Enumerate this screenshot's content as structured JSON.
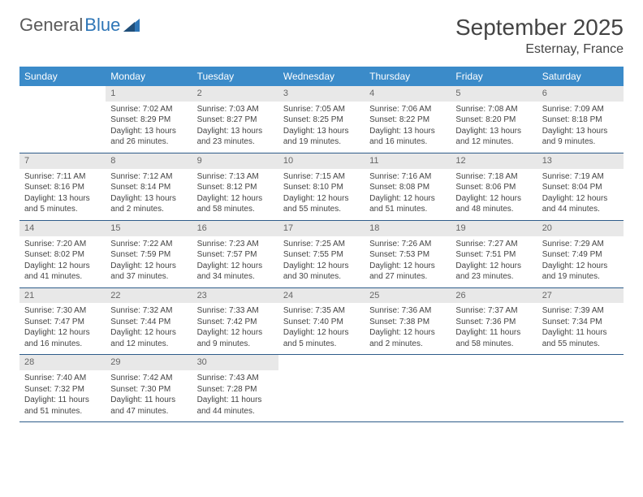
{
  "logo": {
    "text1": "General",
    "text2": "Blue"
  },
  "title": "September 2025",
  "location": "Esternay, France",
  "colors": {
    "header_bg": "#3b8bc9",
    "header_fg": "#ffffff",
    "daynum_bg": "#e8e8e8",
    "cell_border": "#2e5c8a",
    "text": "#444444"
  },
  "weekdays": [
    "Sunday",
    "Monday",
    "Tuesday",
    "Wednesday",
    "Thursday",
    "Friday",
    "Saturday"
  ],
  "weeks": [
    [
      {
        "n": "",
        "sr": "",
        "ss": "",
        "dl": ""
      },
      {
        "n": "1",
        "sr": "Sunrise: 7:02 AM",
        "ss": "Sunset: 8:29 PM",
        "dl": "Daylight: 13 hours and 26 minutes."
      },
      {
        "n": "2",
        "sr": "Sunrise: 7:03 AM",
        "ss": "Sunset: 8:27 PM",
        "dl": "Daylight: 13 hours and 23 minutes."
      },
      {
        "n": "3",
        "sr": "Sunrise: 7:05 AM",
        "ss": "Sunset: 8:25 PM",
        "dl": "Daylight: 13 hours and 19 minutes."
      },
      {
        "n": "4",
        "sr": "Sunrise: 7:06 AM",
        "ss": "Sunset: 8:22 PM",
        "dl": "Daylight: 13 hours and 16 minutes."
      },
      {
        "n": "5",
        "sr": "Sunrise: 7:08 AM",
        "ss": "Sunset: 8:20 PM",
        "dl": "Daylight: 13 hours and 12 minutes."
      },
      {
        "n": "6",
        "sr": "Sunrise: 7:09 AM",
        "ss": "Sunset: 8:18 PM",
        "dl": "Daylight: 13 hours and 9 minutes."
      }
    ],
    [
      {
        "n": "7",
        "sr": "Sunrise: 7:11 AM",
        "ss": "Sunset: 8:16 PM",
        "dl": "Daylight: 13 hours and 5 minutes."
      },
      {
        "n": "8",
        "sr": "Sunrise: 7:12 AM",
        "ss": "Sunset: 8:14 PM",
        "dl": "Daylight: 13 hours and 2 minutes."
      },
      {
        "n": "9",
        "sr": "Sunrise: 7:13 AM",
        "ss": "Sunset: 8:12 PM",
        "dl": "Daylight: 12 hours and 58 minutes."
      },
      {
        "n": "10",
        "sr": "Sunrise: 7:15 AM",
        "ss": "Sunset: 8:10 PM",
        "dl": "Daylight: 12 hours and 55 minutes."
      },
      {
        "n": "11",
        "sr": "Sunrise: 7:16 AM",
        "ss": "Sunset: 8:08 PM",
        "dl": "Daylight: 12 hours and 51 minutes."
      },
      {
        "n": "12",
        "sr": "Sunrise: 7:18 AM",
        "ss": "Sunset: 8:06 PM",
        "dl": "Daylight: 12 hours and 48 minutes."
      },
      {
        "n": "13",
        "sr": "Sunrise: 7:19 AM",
        "ss": "Sunset: 8:04 PM",
        "dl": "Daylight: 12 hours and 44 minutes."
      }
    ],
    [
      {
        "n": "14",
        "sr": "Sunrise: 7:20 AM",
        "ss": "Sunset: 8:02 PM",
        "dl": "Daylight: 12 hours and 41 minutes."
      },
      {
        "n": "15",
        "sr": "Sunrise: 7:22 AM",
        "ss": "Sunset: 7:59 PM",
        "dl": "Daylight: 12 hours and 37 minutes."
      },
      {
        "n": "16",
        "sr": "Sunrise: 7:23 AM",
        "ss": "Sunset: 7:57 PM",
        "dl": "Daylight: 12 hours and 34 minutes."
      },
      {
        "n": "17",
        "sr": "Sunrise: 7:25 AM",
        "ss": "Sunset: 7:55 PM",
        "dl": "Daylight: 12 hours and 30 minutes."
      },
      {
        "n": "18",
        "sr": "Sunrise: 7:26 AM",
        "ss": "Sunset: 7:53 PM",
        "dl": "Daylight: 12 hours and 27 minutes."
      },
      {
        "n": "19",
        "sr": "Sunrise: 7:27 AM",
        "ss": "Sunset: 7:51 PM",
        "dl": "Daylight: 12 hours and 23 minutes."
      },
      {
        "n": "20",
        "sr": "Sunrise: 7:29 AM",
        "ss": "Sunset: 7:49 PM",
        "dl": "Daylight: 12 hours and 19 minutes."
      }
    ],
    [
      {
        "n": "21",
        "sr": "Sunrise: 7:30 AM",
        "ss": "Sunset: 7:47 PM",
        "dl": "Daylight: 12 hours and 16 minutes."
      },
      {
        "n": "22",
        "sr": "Sunrise: 7:32 AM",
        "ss": "Sunset: 7:44 PM",
        "dl": "Daylight: 12 hours and 12 minutes."
      },
      {
        "n": "23",
        "sr": "Sunrise: 7:33 AM",
        "ss": "Sunset: 7:42 PM",
        "dl": "Daylight: 12 hours and 9 minutes."
      },
      {
        "n": "24",
        "sr": "Sunrise: 7:35 AM",
        "ss": "Sunset: 7:40 PM",
        "dl": "Daylight: 12 hours and 5 minutes."
      },
      {
        "n": "25",
        "sr": "Sunrise: 7:36 AM",
        "ss": "Sunset: 7:38 PM",
        "dl": "Daylight: 12 hours and 2 minutes."
      },
      {
        "n": "26",
        "sr": "Sunrise: 7:37 AM",
        "ss": "Sunset: 7:36 PM",
        "dl": "Daylight: 11 hours and 58 minutes."
      },
      {
        "n": "27",
        "sr": "Sunrise: 7:39 AM",
        "ss": "Sunset: 7:34 PM",
        "dl": "Daylight: 11 hours and 55 minutes."
      }
    ],
    [
      {
        "n": "28",
        "sr": "Sunrise: 7:40 AM",
        "ss": "Sunset: 7:32 PM",
        "dl": "Daylight: 11 hours and 51 minutes."
      },
      {
        "n": "29",
        "sr": "Sunrise: 7:42 AM",
        "ss": "Sunset: 7:30 PM",
        "dl": "Daylight: 11 hours and 47 minutes."
      },
      {
        "n": "30",
        "sr": "Sunrise: 7:43 AM",
        "ss": "Sunset: 7:28 PM",
        "dl": "Daylight: 11 hours and 44 minutes."
      },
      {
        "n": "",
        "sr": "",
        "ss": "",
        "dl": ""
      },
      {
        "n": "",
        "sr": "",
        "ss": "",
        "dl": ""
      },
      {
        "n": "",
        "sr": "",
        "ss": "",
        "dl": ""
      },
      {
        "n": "",
        "sr": "",
        "ss": "",
        "dl": ""
      }
    ]
  ]
}
